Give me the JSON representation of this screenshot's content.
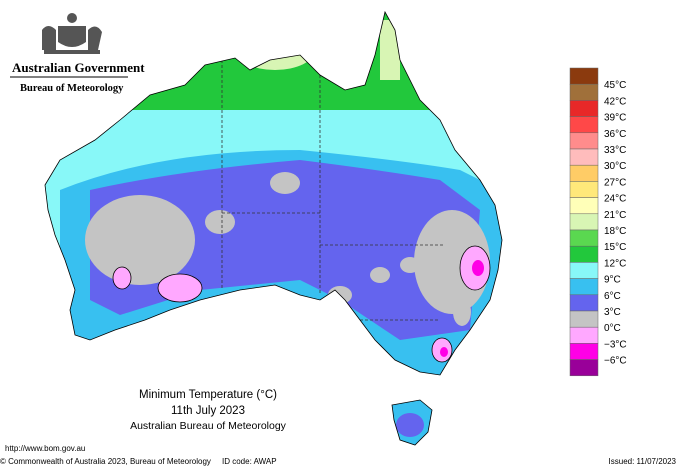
{
  "header": {
    "government": "Australian Government",
    "agency": "Bureau of Meteorology"
  },
  "title": {
    "line1": "Minimum Temperature (°C)",
    "line2": "11th July 2023",
    "line3": "Australian Bureau of Meteorology"
  },
  "legend": {
    "labels": [
      "45°C",
      "42°C",
      "39°C",
      "36°C",
      "33°C",
      "30°C",
      "27°C",
      "24°C",
      "21°C",
      "18°C",
      "15°C",
      "12°C",
      "9°C",
      "6°C",
      "3°C",
      "0°C",
      "−3°C",
      "−6°C"
    ],
    "colors": [
      "#8b3a0e",
      "#a0703a",
      "#e82828",
      "#ff4848",
      "#ff8c8c",
      "#ffbcbc",
      "#ffcc66",
      "#ffe87a",
      "#ffffb8",
      "#d8f5b4",
      "#5ad850",
      "#22c83c",
      "#88f8f8",
      "#38c0f0",
      "#6464ee",
      "#c4c4c4",
      "#ffa8ff",
      "#ff00e6",
      "#990099"
    ]
  },
  "footer": {
    "url": "http://www.bom.gov.au",
    "copyright": "© Commonwealth of Australia 2023, Bureau of Meteorology",
    "id_code": "ID code: AWAP",
    "issued": "Issued: 11/07/2023"
  }
}
